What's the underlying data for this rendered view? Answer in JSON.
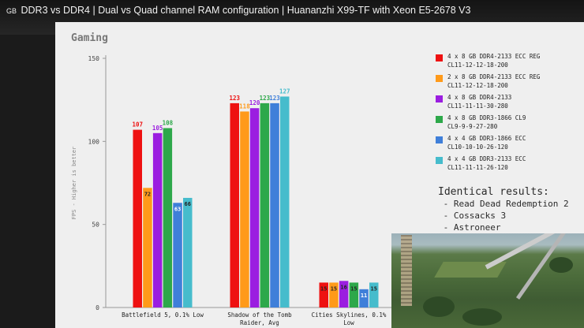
{
  "video": {
    "title_prefix": "GB",
    "title": "DDR3 vs DDR4 | Dual vs Quad channel RAM configuration | Huananzhi X99-TF with Xeon E5-2678 V3"
  },
  "notes": {
    "title": "Identical results:",
    "items": [
      " - Read Dead Redemption 2",
      " - Cossacks 3",
      " - Astroneer"
    ]
  },
  "chart_data": {
    "type": "bar",
    "title": "Gaming",
    "ylabel": "FPS - Higher is better",
    "ylim": [
      0,
      150
    ],
    "yticks": [
      0,
      50,
      100,
      150
    ],
    "categories": [
      [
        "Battlefield 5, 0.1% Low"
      ],
      [
        "Shadow of the Tomb",
        "Raider, Avg"
      ],
      [
        "Cities Skylines, 0.1%",
        "Low"
      ]
    ],
    "series": [
      {
        "name": "4 x 8 GB DDR4-2133 ECC REG",
        "timing": "CL11-12-12-18-200",
        "color": "#ee1111",
        "values": [
          107,
          123,
          15
        ]
      },
      {
        "name": "2 x 8 GB DDR4-2133 ECC REG",
        "timing": "CL11-12-12-18-200",
        "color": "#ff9a1a",
        "values": [
          72,
          118,
          15
        ]
      },
      {
        "name": "4 x 8 GB DDR4-2133",
        "timing": "CL11-11-11-30-280",
        "color": "#9b1ee0",
        "values": [
          105,
          120,
          16
        ]
      },
      {
        "name": "4 x 8 GB DDR3-1866 CL9",
        "timing": "CL9-9-9-27-280",
        "color": "#2da84a",
        "values": [
          108,
          123,
          15
        ]
      },
      {
        "name": "4 x 4 GB DDR3-1866 ECC",
        "timing": "CL10-10-10-26-120",
        "color": "#3f7fd9",
        "values": [
          63,
          123,
          11
        ]
      },
      {
        "name": "4 x 4 GB DDR3-2133 ECC",
        "timing": "CL11-11-11-26-120",
        "color": "#46bccc",
        "values": [
          66,
          127,
          15
        ]
      }
    ],
    "legend_position": "right",
    "grid": false
  }
}
